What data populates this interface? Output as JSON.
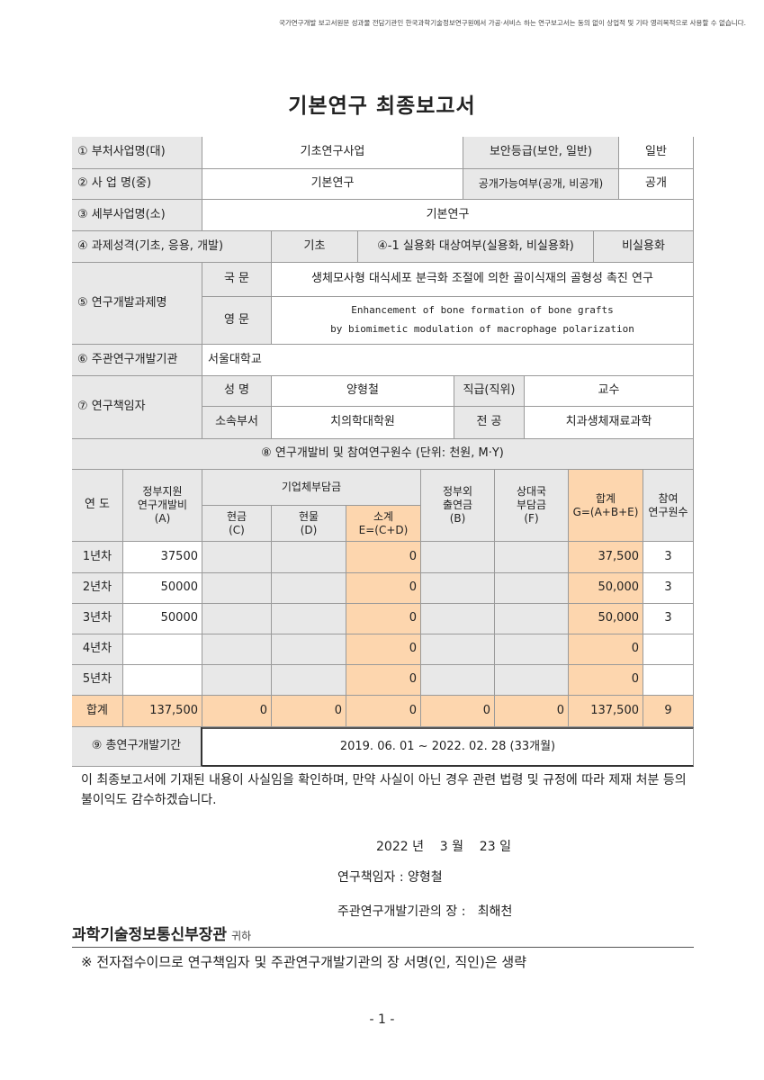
{
  "notice": "국가연구개발 보고서원문 성과물 전담기관인 한국과학기술정보연구원에서 가공·서비스 하는 연구보고서는 동의 없이 상업적 및 기타 영리목적으로 사용할 수 없습니다.",
  "title": "기본연구 최종보고서",
  "info": {
    "r1_label": "① 부처사업명(대)",
    "r1_value": "기초연구사업",
    "r1_label2": "보안등급(보안, 일반)",
    "r1_value2": "일반",
    "r2_label": "② 사 업 명(중)",
    "r2_value": "기본연구",
    "r2_label2": "공개가능여부(공개, 비공개)",
    "r2_value2": "공개",
    "r3_label": "③ 세부사업명(소)",
    "r3_value": "기본연구",
    "r4_label": "④ 과제성격(기초, 응용, 개발)",
    "r4_value": "기초",
    "r4_label2": "④-1 실용화 대상여부(실용화, 비실용화)",
    "r4_value2": "비실용화",
    "r5_label": "⑤ 연구개발과제명",
    "r5_kor_label": "국 문",
    "r5_kor": "생체모사형 대식세포 분극화 조절에 의한 골이식재의 골형성 촉진 연구",
    "r5_eng_label": "영 문",
    "r5_eng_1": "Enhancement of bone formation of bone grafts",
    "r5_eng_2": "by biomimetic modulation of macrophage polarization",
    "r6_label": "⑥ 주관연구개발기관",
    "r6_value": "서울대학교",
    "r7_label": "⑦ 연구책임자",
    "r7_name_label": "성 명",
    "r7_name": "양형철",
    "r7_pos_label": "직급(직위)",
    "r7_pos": "교수",
    "r7_dept_label": "소속부서",
    "r7_dept": "치의학대학원",
    "r7_major_label": "전 공",
    "r7_major": "치과생체재료과학"
  },
  "budget": {
    "title": "⑧ 연구개발비 및 참여연구원수 (단위: 천원, M·Y)",
    "h_year": "연 도",
    "h_gov": "정부지원\n연구개발비\n(A)",
    "h_company": "기업체부담금",
    "h_cash": "현금\n(C)",
    "h_kind": "현물\n(D)",
    "h_sub": "소계\nE=(C+D)",
    "h_nongov": "정부외\n출연금\n(B)",
    "h_foreign": "상대국\n부담금\n(F)",
    "h_total": "합계\nG=(A+B+E)",
    "h_people": "참여\n연구원수",
    "rows": [
      [
        "1년차",
        "37500",
        "",
        "",
        "0",
        "",
        "",
        "37,500",
        "3"
      ],
      [
        "2년차",
        "50000",
        "",
        "",
        "0",
        "",
        "",
        "50,000",
        "3"
      ],
      [
        "3년차",
        "50000",
        "",
        "",
        "0",
        "",
        "",
        "50,000",
        "3"
      ],
      [
        "4년차",
        "",
        "",
        "",
        "0",
        "",
        "",
        "0",
        ""
      ],
      [
        "5년차",
        "",
        "",
        "",
        "0",
        "",
        "",
        "0",
        ""
      ],
      [
        "합계",
        "137,500",
        "0",
        "0",
        "0",
        "0",
        "0",
        "137,500",
        "9"
      ]
    ]
  },
  "period": {
    "label": "⑨ 총연구개발기간",
    "value": "2019. 06. 01 ~ 2022. 02. 28 (33개월)"
  },
  "statement": "이 최종보고서에 기재된 내용이 사실임을 확인하며, 만약 사실이 아닌 경우 관련 법령 및 규정에 따라 제재 처분 등의 불이익도 감수하겠습니다.",
  "date": "2022 년    3 월    23 일",
  "pi": "연구책임자 : 양형철",
  "head": "주관연구개발기관의 장 :   최해천",
  "recipient": "과학기술정보통신부장관",
  "recipient_suffix": "귀하",
  "note": "※ 전자접수이므로 연구책임자 및 주관연구개발기관의 장 서명(인, 직인)은 생략",
  "page": "- 1 -"
}
